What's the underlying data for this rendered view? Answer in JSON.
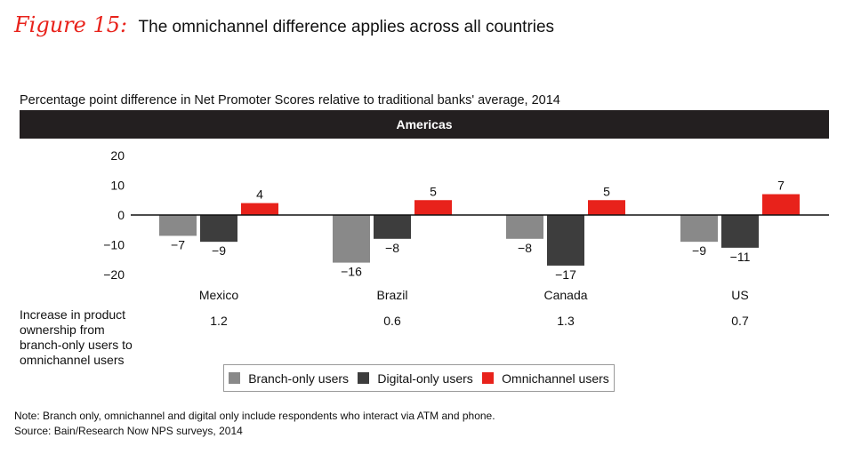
{
  "figure": {
    "label": "Figure 15:",
    "title": "The omnichannel difference applies across all countries"
  },
  "subtitle": "Percentage point difference in Net Promoter Scores relative to traditional banks' average, 2014",
  "region_band": "Americas",
  "colors": {
    "branch": "#898989",
    "digital": "#3d3d3d",
    "omni": "#e8221b",
    "band": "#231f20"
  },
  "chart_data": {
    "type": "bar",
    "categories": [
      "Mexico",
      "Brazil",
      "Canada",
      "US"
    ],
    "series": [
      {
        "name": "Branch-only users",
        "values": [
          -7,
          -16,
          -8,
          -9
        ]
      },
      {
        "name": "Digital-only users",
        "values": [
          -9,
          -8,
          -17,
          -11
        ]
      },
      {
        "name": "Omnichannel users",
        "values": [
          4,
          5,
          5,
          7
        ]
      }
    ],
    "value_labels": [
      [
        "−7",
        "−16",
        "−8",
        "−9"
      ],
      [
        "−9",
        "−8",
        "−17",
        "−11"
      ],
      [
        "4",
        "5",
        "5",
        "7"
      ]
    ],
    "y_ticks": [
      "20",
      "10",
      "0",
      "−10",
      "−20"
    ],
    "y_tick_values": [
      20,
      10,
      0,
      -10,
      -20
    ],
    "ylim": [
      -20,
      20
    ],
    "legend_position": "bottom"
  },
  "product_ownership": {
    "label": "Increase in product ownership from branch-only users to omnichannel users",
    "values": [
      "1.2",
      "0.6",
      "1.3",
      "0.7"
    ]
  },
  "legend": {
    "branch": "Branch-only users",
    "digital": "Digital-only users",
    "omni": "Omnichannel users"
  },
  "notes": {
    "note": "Note: Branch only, omnichannel and digital only include respondents who interact via ATM and phone.",
    "source": "Source: Bain/Research Now NPS surveys, 2014"
  }
}
